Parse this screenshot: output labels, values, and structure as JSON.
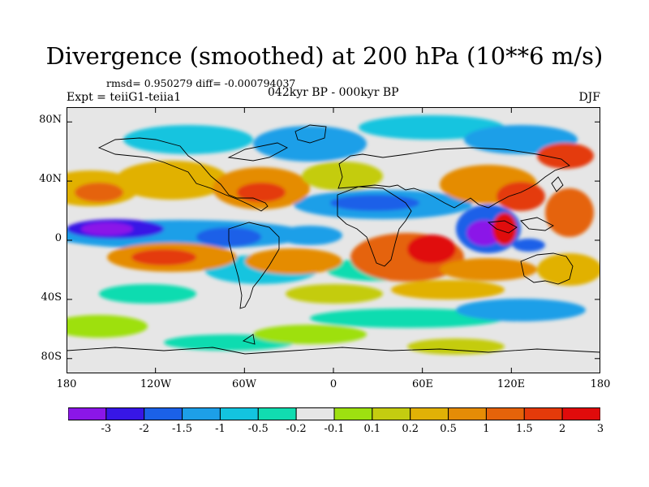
{
  "title": "Divergence (smoothed) at 200 hPa (10**6 m/s)",
  "stats_line": "rmsd= 0.950279  diff= -0.000794037",
  "experiment": "Expt = teiiG1-teiia1",
  "period": "042kyr BP - 000kyr BP",
  "season": "DJF",
  "map": {
    "projection": "cylindrical equidistant",
    "lon_range": [
      -180,
      180
    ],
    "lat_range": [
      -90,
      90
    ],
    "x_ticks": [
      {
        "lon": -180,
        "label": "180"
      },
      {
        "lon": -120,
        "label": "120W"
      },
      {
        "lon": -60,
        "label": "60W"
      },
      {
        "lon": 0,
        "label": "0"
      },
      {
        "lon": 60,
        "label": "60E"
      },
      {
        "lon": 120,
        "label": "120E"
      },
      {
        "lon": 180,
        "label": "180"
      }
    ],
    "y_ticks": [
      {
        "lat": 80,
        "label": "80N"
      },
      {
        "lat": 40,
        "label": "40N"
      },
      {
        "lat": 0,
        "label": "0"
      },
      {
        "lat": -40,
        "label": "40S"
      },
      {
        "lat": -80,
        "label": "80S"
      }
    ],
    "background_color": "#e6e6e6"
  },
  "colorbar": {
    "colors": [
      "#8b16e8",
      "#3716e6",
      "#1b61e8",
      "#1d9fe8",
      "#13c4df",
      "#11dcb0",
      "#e6e6e6",
      "#9ee010",
      "#c4cc10",
      "#e1b106",
      "#e58c06",
      "#e5630a",
      "#e43a0a",
      "#e00b0b"
    ],
    "labels": [
      "-3",
      "-2",
      "-1.5",
      "-1",
      "-0.5",
      "-0.2",
      "-0.1",
      "0.1",
      "0.2",
      "0.5",
      "1",
      "1.5",
      "2",
      "3"
    ]
  }
}
